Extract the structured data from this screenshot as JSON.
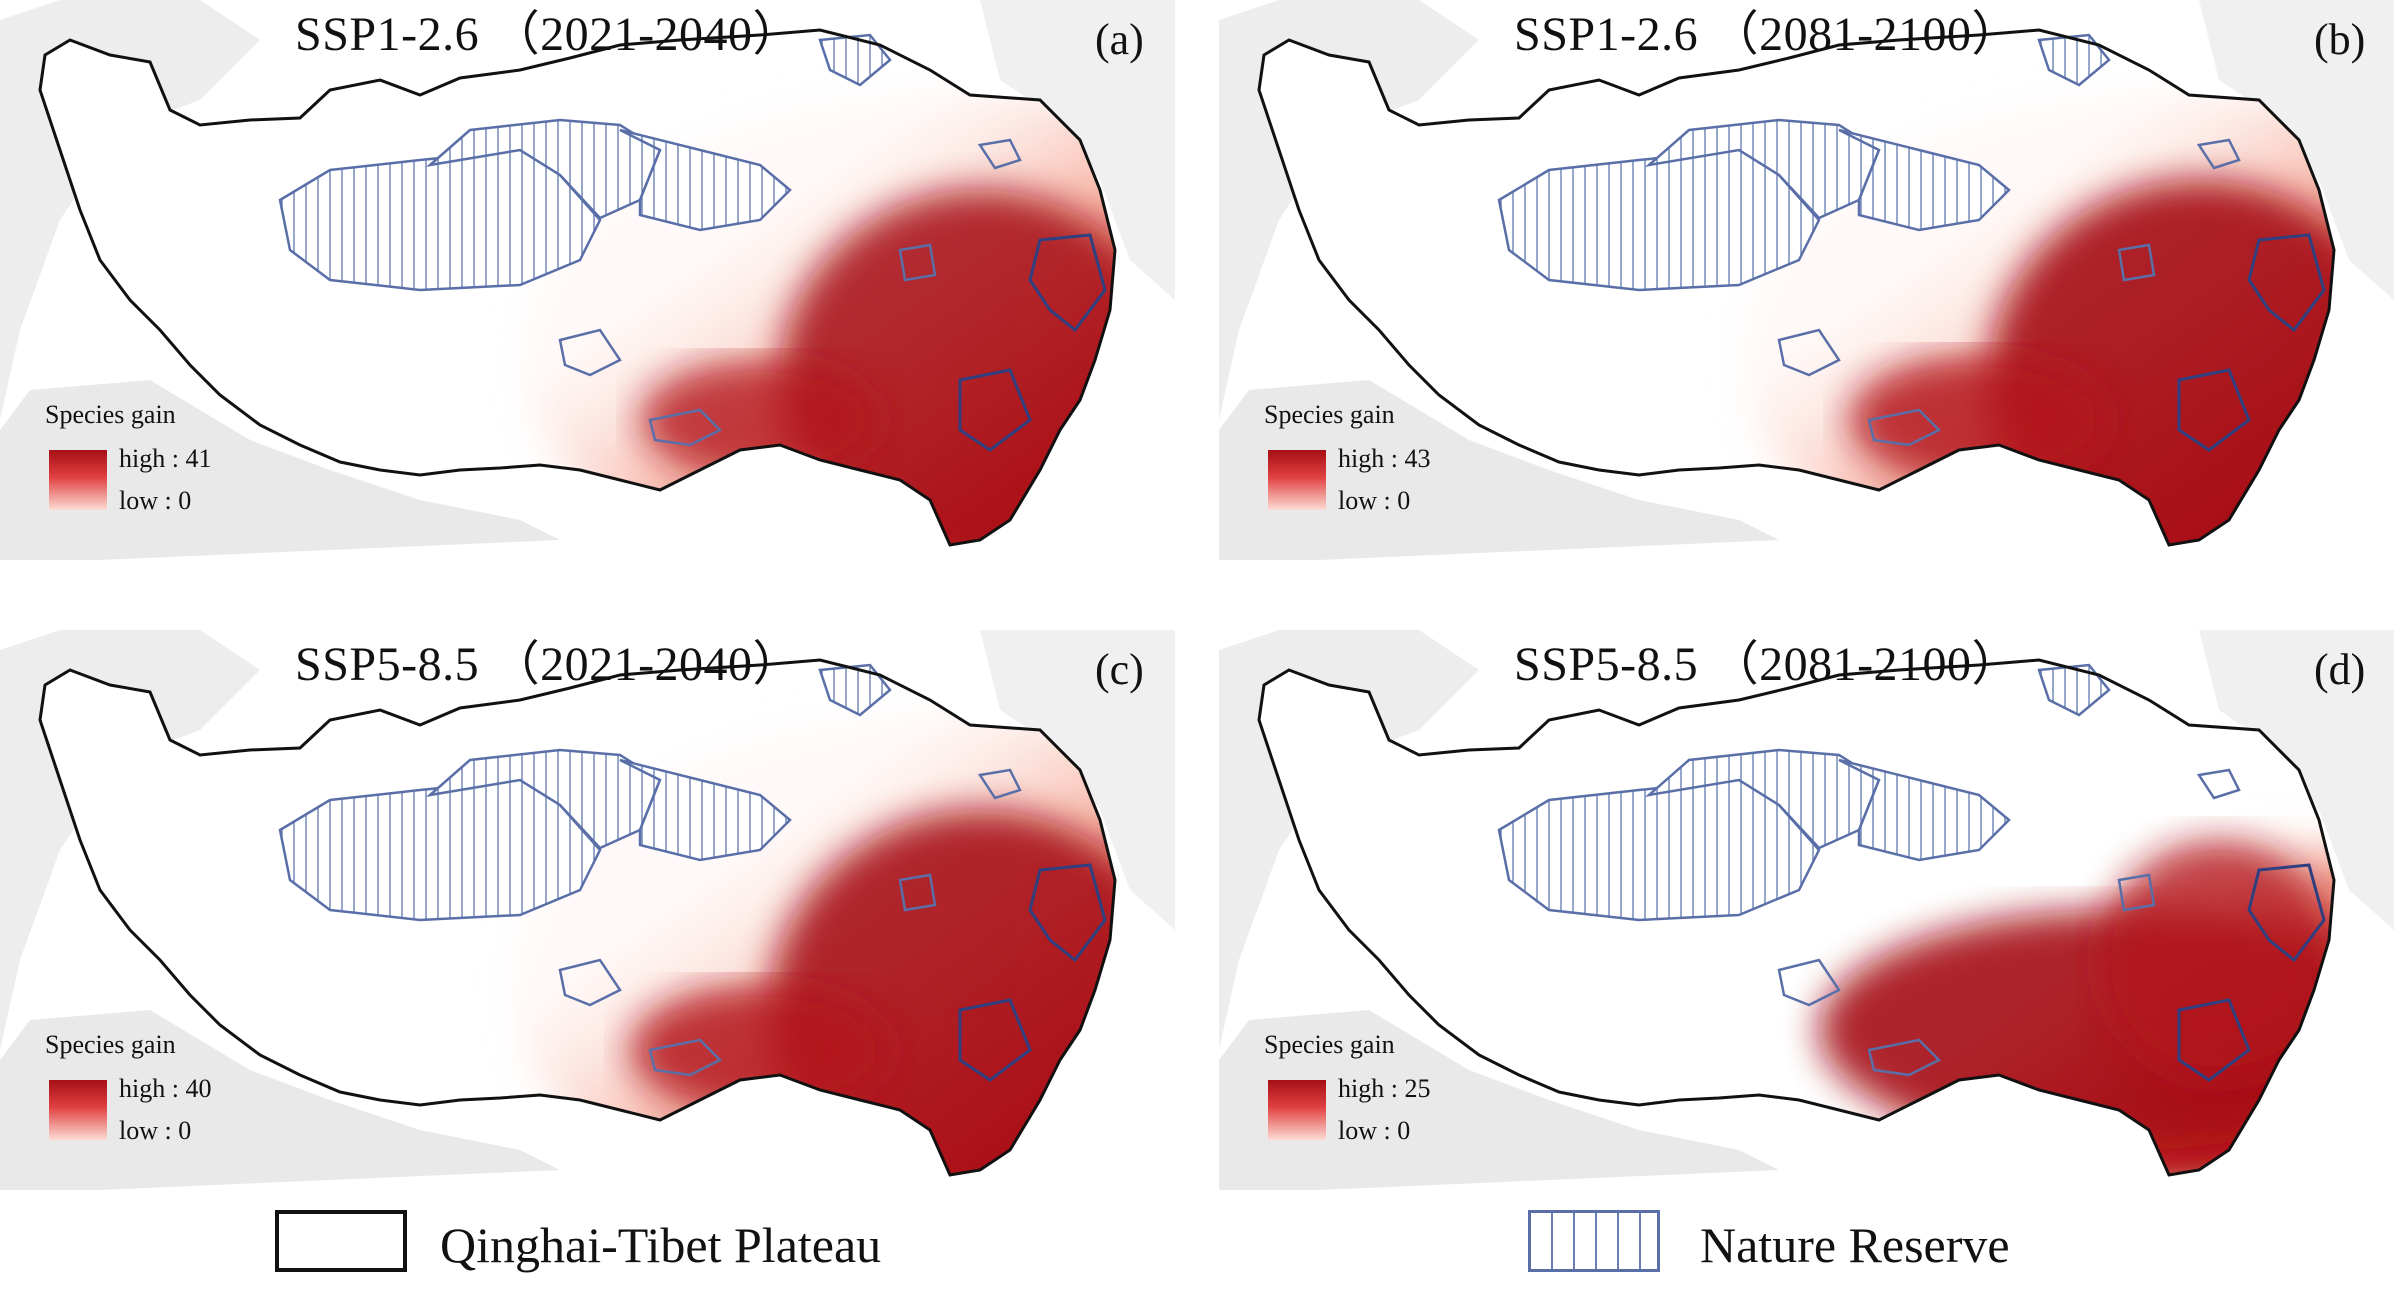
{
  "panels": [
    {
      "title": "SSP1-2.6 （2021-2040）",
      "label": "(a)",
      "legend_title": "Species gain",
      "high": "high : 41",
      "low": "low : 0"
    },
    {
      "title": "SSP1-2.6 （2081-2100）",
      "label": "(b)",
      "legend_title": "Species gain",
      "high": "high : 43",
      "low": "low : 0"
    },
    {
      "title": "SSP5-8.5 （2021-2040）",
      "label": "(c)",
      "legend_title": "Species gain",
      "high": "high : 40",
      "low": "low : 0"
    },
    {
      "title": "SSP5-8.5 （2081-2100）",
      "label": "(d)",
      "legend_title": "Species gain",
      "high": "high : 25",
      "low": "low : 0"
    }
  ],
  "map_legend": {
    "plateau_label": "Qinghai-Tibet Plateau",
    "reserve_label": "Nature Reserve"
  },
  "colors": {
    "gain_high": "#a50f15",
    "gain_mid": "#ef6a5a",
    "gain_low": "#fde3dc",
    "boundary": "#111111",
    "reserve": "#5a6fa8",
    "terrain": "#d9d9d9"
  }
}
